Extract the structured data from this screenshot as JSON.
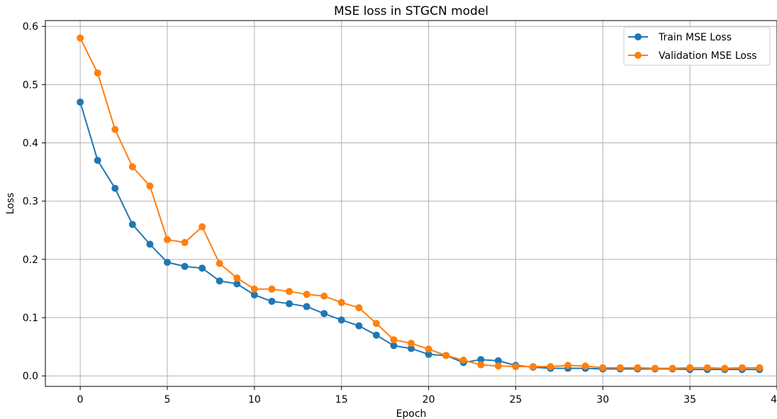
{
  "chart_data": {
    "type": "line",
    "title": "MSE loss in STGCN model",
    "xlabel": "Epoch",
    "ylabel": "Loss",
    "xlim": [
      -2,
      40
    ],
    "ylim": [
      -0.018,
      0.61
    ],
    "xticks": [
      0,
      5,
      10,
      15,
      20,
      25,
      30,
      35,
      40
    ],
    "yticks": [
      0.0,
      0.1,
      0.2,
      0.3,
      0.4,
      0.5,
      0.6
    ],
    "grid": true,
    "legend": "top-right",
    "x": [
      0,
      1,
      2,
      3,
      4,
      5,
      6,
      7,
      8,
      9,
      10,
      11,
      12,
      13,
      14,
      15,
      16,
      17,
      18,
      19,
      20,
      21,
      22,
      23,
      24,
      25,
      26,
      27,
      28,
      29,
      30,
      31,
      32,
      33,
      34,
      35,
      36,
      37,
      38,
      39
    ],
    "series": [
      {
        "name": "Train MSE Loss",
        "color": "#1f77b4",
        "values": [
          0.47,
          0.37,
          0.322,
          0.26,
          0.226,
          0.195,
          0.188,
          0.185,
          0.163,
          0.158,
          0.139,
          0.128,
          0.124,
          0.119,
          0.107,
          0.096,
          0.086,
          0.07,
          0.052,
          0.047,
          0.037,
          0.035,
          0.023,
          0.028,
          0.026,
          0.018,
          0.015,
          0.013,
          0.013,
          0.013,
          0.012,
          0.012,
          0.012,
          0.012,
          0.012,
          0.011,
          0.011,
          0.011,
          0.011,
          0.011
        ]
      },
      {
        "name": "Validation MSE Loss",
        "color": "#ff7f0e",
        "values": [
          0.58,
          0.52,
          0.423,
          0.359,
          0.326,
          0.234,
          0.229,
          0.256,
          0.193,
          0.168,
          0.149,
          0.149,
          0.145,
          0.14,
          0.137,
          0.126,
          0.117,
          0.09,
          0.062,
          0.056,
          0.046,
          0.035,
          0.027,
          0.019,
          0.017,
          0.016,
          0.016,
          0.016,
          0.018,
          0.017,
          0.014,
          0.014,
          0.014,
          0.013,
          0.013,
          0.014,
          0.014,
          0.013,
          0.014,
          0.014
        ]
      }
    ]
  }
}
